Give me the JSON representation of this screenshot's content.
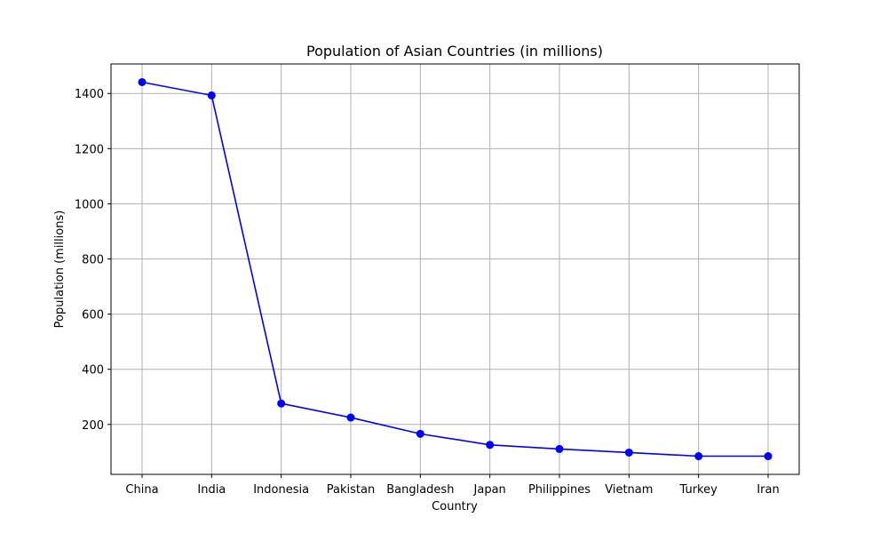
{
  "chart_data": {
    "type": "line",
    "title": "Population of Asian Countries (in millions)",
    "xlabel": "Country",
    "ylabel": "Population (millions)",
    "categories": [
      "China",
      "India",
      "Indonesia",
      "Pakistan",
      "Bangladesh",
      "Japan",
      "Philippines",
      "Vietnam",
      "Turkey",
      "Iran"
    ],
    "series": [
      {
        "values": [
          1441,
          1393,
          276,
          225,
          166,
          126,
          111,
          98,
          85,
          85
        ]
      }
    ],
    "yticks": [
      200,
      400,
      600,
      800,
      1000,
      1200,
      1400
    ],
    "ylim": [
      19,
      1507
    ],
    "grid": true,
    "line_color": "#0000ff",
    "marker": "circle"
  }
}
